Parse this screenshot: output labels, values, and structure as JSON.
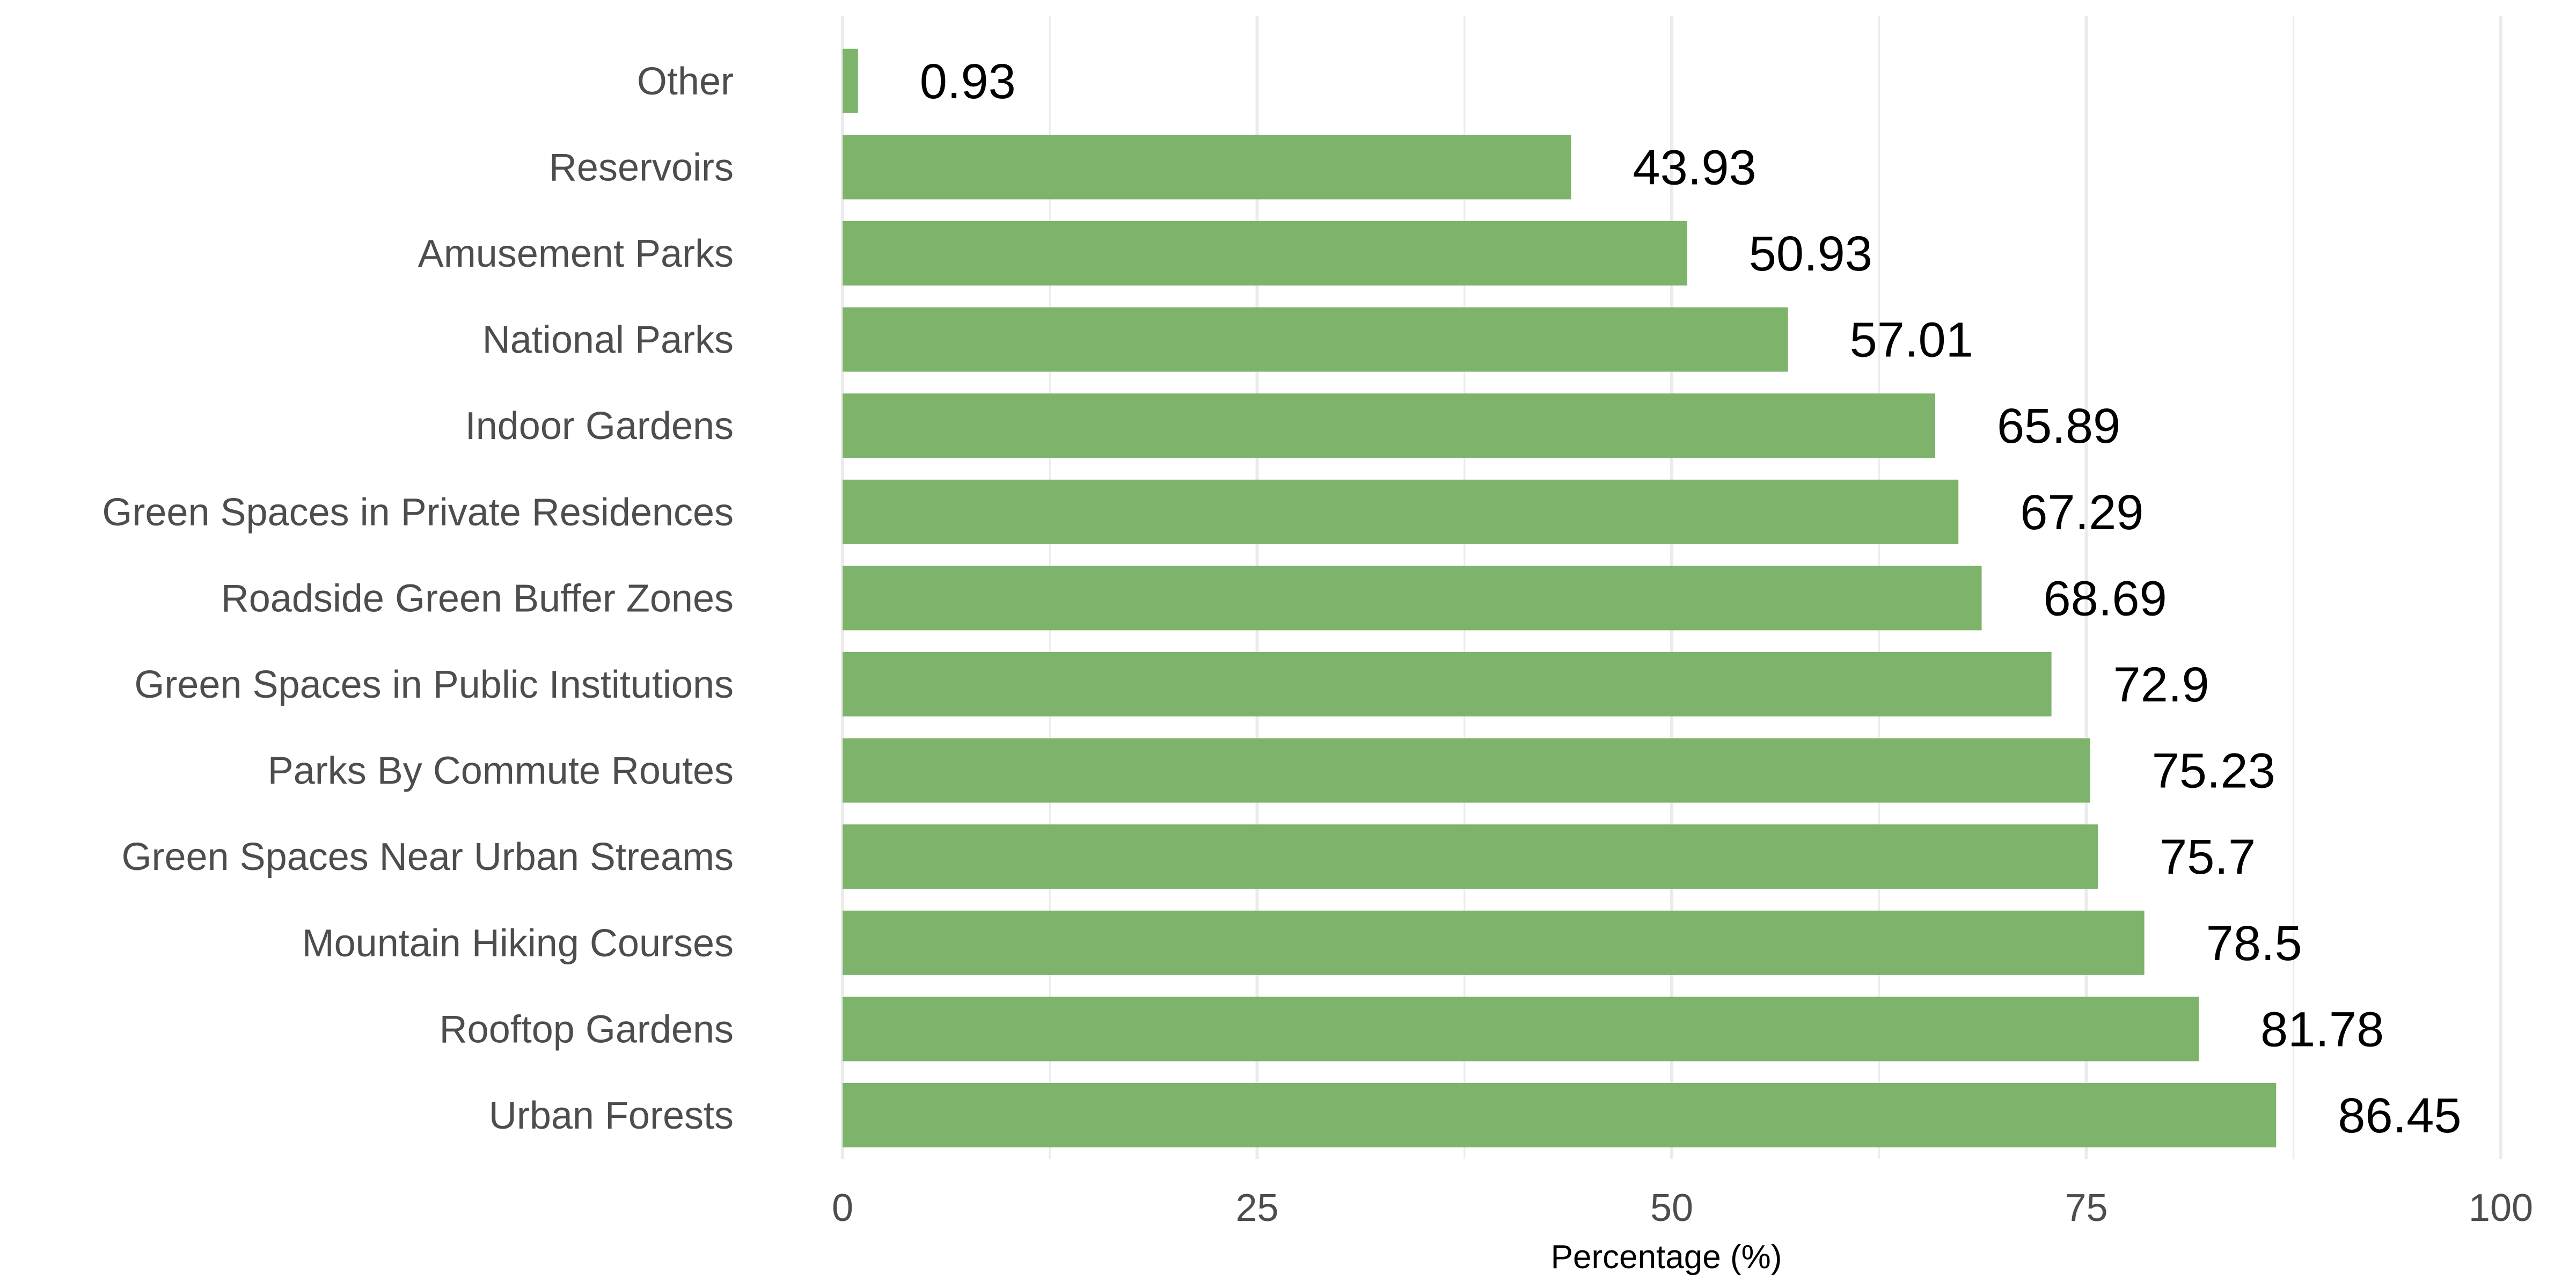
{
  "chart_data": {
    "type": "bar",
    "orientation": "horizontal",
    "categories": [
      "Urban Forests",
      "Rooftop Gardens",
      "Mountain Hiking Courses",
      "Green Spaces Near Urban Streams",
      "Parks By Commute Routes",
      "Green Spaces in Public Institutions",
      "Roadside Green Buffer Zones",
      "Green Spaces in Private Residences",
      "Indoor Gardens",
      "National Parks",
      "Amusement Parks",
      "Reservoirs",
      "Other"
    ],
    "values": [
      86.45,
      81.78,
      78.5,
      75.7,
      75.23,
      72.9,
      68.69,
      67.29,
      65.89,
      57.01,
      50.93,
      43.93,
      0.93
    ],
    "value_labels": [
      "86.45",
      "81.78",
      "78.5",
      "75.7",
      "75.23",
      "72.9",
      "68.69",
      "67.29",
      "65.89",
      "57.01",
      "50.93",
      "43.93",
      "0.93"
    ],
    "title": "",
    "xlabel": "Percentage (%)",
    "ylabel": "",
    "xlim": [
      0,
      100
    ],
    "x_ticks": [
      0,
      25,
      50,
      75,
      100
    ],
    "x_tick_labels": [
      "0",
      "25",
      "50",
      "75",
      "100"
    ],
    "grid": true,
    "legend": "none",
    "bar_color": "#7db36a",
    "grid_color": "#ebebeb"
  }
}
